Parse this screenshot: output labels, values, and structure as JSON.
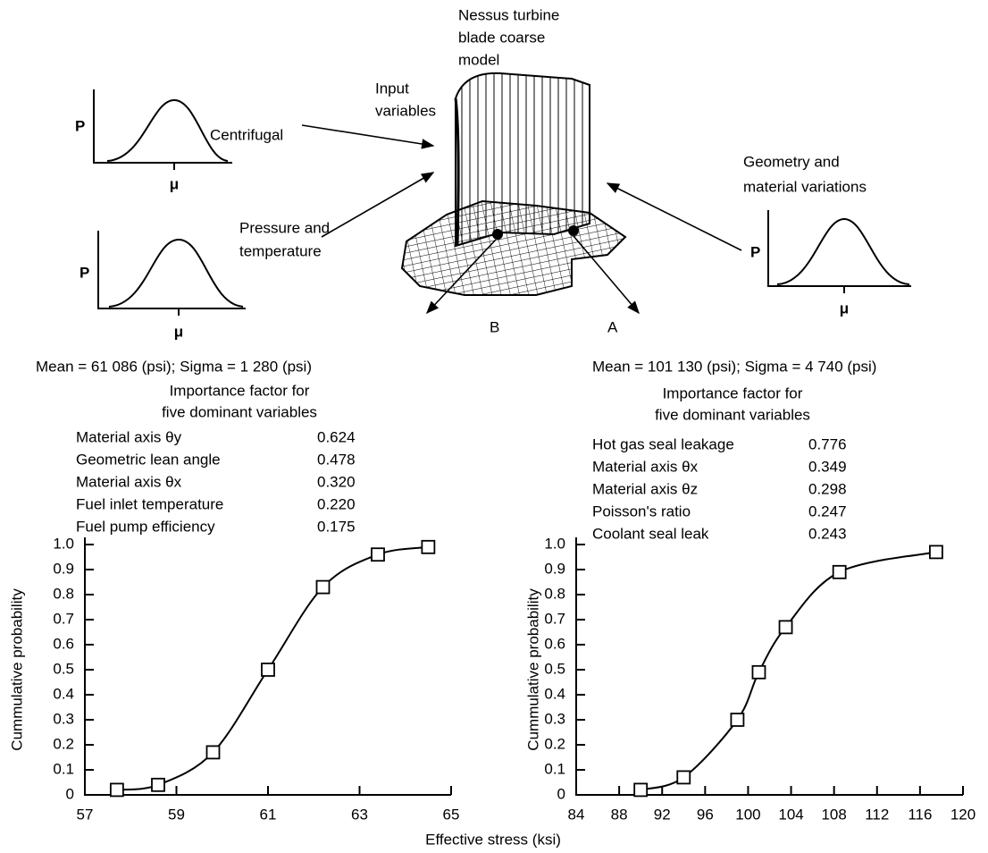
{
  "diagram": {
    "model_label": [
      "Nessus turbine",
      "blade coarse",
      "model"
    ],
    "input_label": [
      "Input",
      "variables"
    ],
    "centrifugal": "Centrifugal",
    "pressure_label": [
      "Pressure and",
      "temperature"
    ],
    "geometry_label": [
      "Geometry and",
      "material variations"
    ],
    "p_labels": [
      "P",
      "P",
      "P"
    ],
    "mu_labels": [
      "μ",
      "μ",
      "μ"
    ],
    "point_b": "B",
    "point_a": "A"
  },
  "x_axis_label": "Effective stress (ksi)",
  "chart_data": [
    {
      "type": "line",
      "marker": "square",
      "color": "#000000",
      "subtitle": "Mean = 61 086 (psi); Sigma = 1 280 (psi)",
      "table_title": [
        "Importance factor for",
        "five dominant variables"
      ],
      "importance": {
        "variables": [
          "Material axis θy",
          "Geometric lean angle",
          "Material axis θx",
          "Fuel inlet temperature",
          "Fuel pump efficiency"
        ],
        "factors": [
          "0.624",
          "0.478",
          "0.320",
          "0.220",
          "0.175"
        ]
      },
      "ylabel": "Cummulative probability",
      "x": [
        57.7,
        58.6,
        59.8,
        61.0,
        62.2,
        63.4,
        64.5
      ],
      "values": [
        0.02,
        0.04,
        0.17,
        0.5,
        0.83,
        0.96,
        0.99
      ],
      "xlim": [
        57,
        65
      ],
      "xticks": [
        57,
        59,
        61,
        63,
        65
      ],
      "ylim": [
        0,
        1
      ],
      "yticks": [
        0,
        0.1,
        0.2,
        0.3,
        0.4,
        0.5,
        0.6,
        0.7,
        0.8,
        0.9,
        {
          "value": 1,
          "label": "1.0"
        }
      ]
    },
    {
      "type": "line",
      "marker": "square",
      "color": "#000000",
      "subtitle": "Mean = 101 130 (psi); Sigma = 4 740 (psi)",
      "table_title": [
        "Importance factor for",
        "five dominant variables"
      ],
      "importance": {
        "variables": [
          "Hot gas seal leakage",
          "Material axis θx",
          "Material axis θz",
          "Poisson's ratio",
          "Coolant seal leak"
        ],
        "factors": [
          "0.776",
          "0.349",
          "0.298",
          "0.247",
          "0.243"
        ]
      },
      "ylabel": "Cummulative probability",
      "x": [
        90,
        94,
        99,
        101,
        103.5,
        108.5,
        117.5
      ],
      "values": [
        0.02,
        0.07,
        0.3,
        0.49,
        0.67,
        0.89,
        0.97
      ],
      "xlim": [
        84,
        120
      ],
      "xticks": [
        84,
        88,
        92,
        96,
        100,
        104,
        108,
        112,
        116,
        120
      ],
      "ylim": [
        0,
        1
      ],
      "yticks": [
        0,
        0.1,
        0.2,
        0.3,
        0.4,
        0.5,
        0.6,
        0.7,
        0.8,
        0.9,
        {
          "value": 1,
          "label": "1.0"
        }
      ]
    }
  ]
}
